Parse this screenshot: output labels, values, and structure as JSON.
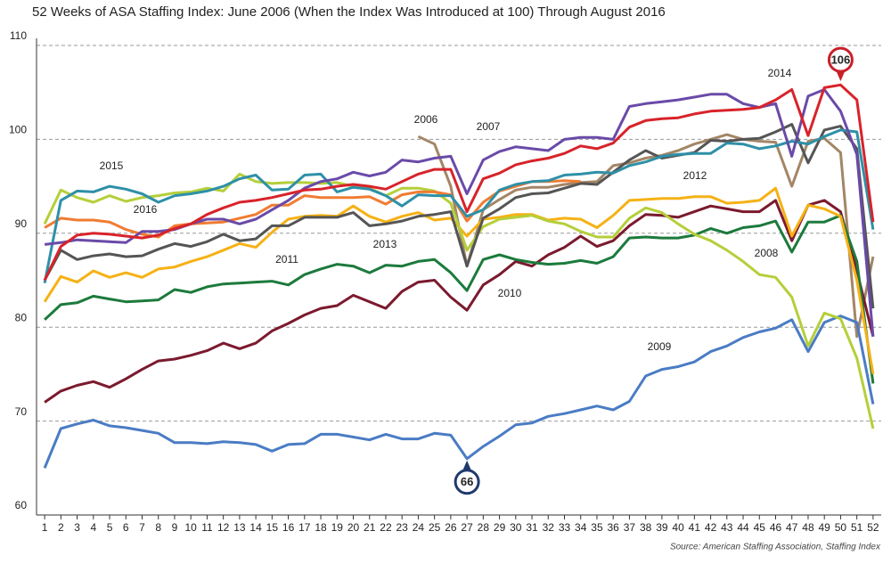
{
  "chart_data": {
    "type": "line",
    "title": "52 Weeks of ASA Staffing Index: June 2006 (When the Index Was Introduced at 100) Through August 2016",
    "source": "Source: American Staffing Association, Staffing Index",
    "x": [
      1,
      2,
      3,
      4,
      5,
      6,
      7,
      8,
      9,
      10,
      11,
      12,
      13,
      14,
      15,
      16,
      17,
      18,
      19,
      20,
      21,
      22,
      23,
      24,
      25,
      26,
      27,
      28,
      29,
      30,
      31,
      32,
      33,
      34,
      35,
      36,
      37,
      38,
      39,
      40,
      41,
      42,
      43,
      44,
      45,
      46,
      47,
      48,
      49,
      50,
      51,
      52
    ],
    "xlim": [
      0.5,
      52.5
    ],
    "ylim": [
      60,
      110
    ],
    "yticks": [
      60,
      70,
      80,
      90,
      100,
      110
    ],
    "grid": true,
    "series": [
      {
        "name": "2006",
        "color": "#a38666",
        "values": [
          null,
          null,
          null,
          null,
          null,
          null,
          null,
          null,
          null,
          null,
          null,
          null,
          null,
          null,
          null,
          null,
          null,
          null,
          null,
          null,
          null,
          null,
          null,
          100.3,
          99.5,
          95,
          86.5,
          92.5,
          93.6,
          94.6,
          94.9,
          94.9,
          95.2,
          95.4,
          95.5,
          97.2,
          97.5,
          98,
          98.3,
          98.8,
          99.5,
          100,
          100.5,
          100,
          99.8,
          99.7,
          95,
          99.8,
          100.1,
          98.6,
          79,
          87.5
        ]
      },
      {
        "name": "2009",
        "color": "#4a7cc4",
        "values": [
          65,
          69.2,
          69.7,
          70.1,
          69.5,
          69.3,
          69,
          68.7,
          67.7,
          67.7,
          67.6,
          67.8,
          67.7,
          67.5,
          66.8,
          67.5,
          67.6,
          68.6,
          68.6,
          68.3,
          68,
          68.6,
          68.1,
          68.1,
          68.7,
          68.5,
          66,
          67.3,
          68.4,
          69.6,
          69.8,
          70.5,
          70.8,
          71.2,
          71.6,
          71.2,
          72.1,
          74.8,
          75.5,
          75.8,
          76.3,
          77.4,
          78,
          78.9,
          79.5,
          79.9,
          80.8,
          77.4,
          80.5,
          81.2,
          80.5,
          71.8
        ]
      },
      {
        "name": "2010",
        "color": "#7b1a2e",
        "values": [
          72,
          73.2,
          73.8,
          74.2,
          73.6,
          74.5,
          75.5,
          76.4,
          76.6,
          77,
          77.5,
          78.3,
          77.7,
          78.3,
          79.6,
          80.4,
          81.3,
          82,
          82.3,
          83.4,
          82.7,
          82,
          83.8,
          84.8,
          85,
          83.2,
          81.8,
          84.5,
          85.6,
          87,
          86.5,
          87.7,
          88.5,
          89.7,
          88.6,
          89.2,
          90.8,
          92,
          91.9,
          91.7,
          92.3,
          92.9,
          92.6,
          92.3,
          92.3,
          93.5,
          89.2,
          93,
          93.5,
          92.3,
          86,
          79
        ]
      },
      {
        "name": "2011",
        "color": "#1c7a3c",
        "values": [
          80.8,
          82.4,
          82.6,
          83.3,
          83,
          82.7,
          82.8,
          82.9,
          84,
          83.7,
          84.3,
          84.6,
          84.7,
          84.8,
          84.9,
          84.5,
          85.6,
          86.2,
          86.7,
          86.5,
          85.8,
          86.6,
          86.5,
          87,
          87.2,
          85.8,
          83.9,
          87.2,
          87.7,
          87.2,
          86.9,
          86.7,
          86.8,
          87.1,
          86.8,
          87.5,
          89.5,
          89.6,
          89.5,
          89.5,
          89.8,
          90.5,
          90,
          90.6,
          90.8,
          91.3,
          88,
          91.2,
          91.2,
          91.9,
          87,
          74
        ]
      },
      {
        "name": "2012",
        "color": "#f6b115",
        "values": [
          82.7,
          85.4,
          84.8,
          86,
          85.3,
          85.8,
          85.3,
          86.2,
          86.4,
          87,
          87.5,
          88.2,
          88.9,
          88.5,
          90.1,
          91.5,
          91.8,
          91.9,
          91.8,
          92.9,
          91.8,
          91.2,
          91.8,
          92.2,
          91.4,
          91.6,
          89.7,
          91.5,
          91.7,
          92,
          92,
          91.4,
          91.6,
          91.5,
          90.6,
          91.9,
          93.5,
          93.6,
          93.7,
          93.7,
          93.9,
          93.9,
          93.2,
          93.3,
          93.5,
          94.8,
          89.7,
          93,
          92.6,
          91.8,
          85,
          75
        ]
      },
      {
        "name": "2008",
        "color": "#b5cf3a",
        "values": [
          91,
          94.6,
          93.8,
          93.3,
          94,
          93.4,
          93.8,
          94,
          94.3,
          94.4,
          94.8,
          94.5,
          96.3,
          95.5,
          95.3,
          95.4,
          95.4,
          95.3,
          95.4,
          95,
          94.8,
          94,
          94.8,
          94.8,
          94.5,
          93.2,
          88.2,
          90.7,
          91.5,
          91.7,
          91.9,
          91.3,
          91,
          90.2,
          89.6,
          89.6,
          91.6,
          92.7,
          92.2,
          91,
          89.9,
          89.2,
          88.2,
          87,
          85.6,
          85.3,
          83.2,
          78,
          81.5,
          80.9,
          76.7,
          69.2
        ]
      },
      {
        "name": "2016",
        "color": "#f07c32",
        "values": [
          90.6,
          91.6,
          91.4,
          91.4,
          91.2,
          90.4,
          89.9,
          89.6,
          90.8,
          91,
          91.1,
          91.2,
          91.6,
          92,
          93,
          93,
          94,
          93.8,
          93.8,
          93.8,
          93.9,
          93.1,
          94.1,
          94.4,
          94.4,
          94.1,
          91.3,
          93.3,
          94.5,
          95,
          95.5,
          95.5,
          95.6,
          95.5,
          null,
          null,
          null,
          null,
          null,
          null,
          null,
          null,
          null,
          null,
          null,
          null,
          null,
          null,
          null,
          null,
          null,
          null
        ]
      },
      {
        "name": "2013",
        "color": "#555555",
        "values": [
          85,
          88.2,
          87.2,
          87.6,
          87.8,
          87.5,
          87.6,
          88.3,
          88.9,
          88.6,
          89.1,
          89.9,
          89.2,
          89.4,
          90.8,
          90.8,
          91.7,
          91.7,
          91.7,
          92.2,
          90.8,
          91,
          91.3,
          91.8,
          92,
          92.3,
          86.5,
          91.6,
          92.6,
          93.8,
          94.2,
          94.3,
          94.8,
          95.3,
          95.2,
          96.5,
          97.8,
          98.8,
          98,
          98.3,
          98.6,
          99.9,
          99.8,
          100,
          100.1,
          100.8,
          101.6,
          97.5,
          101,
          101.4,
          99,
          82
        ]
      },
      {
        "name": "2015",
        "color": "#2e90a8",
        "values": [
          84.7,
          93.5,
          94.5,
          94.4,
          95,
          94.7,
          94.2,
          93.3,
          94,
          94.2,
          94.5,
          95,
          95.8,
          96.2,
          94.6,
          94.7,
          96.2,
          96.3,
          94.4,
          94.9,
          94.7,
          94,
          92.9,
          94.1,
          94,
          94,
          91.8,
          92.5,
          94.6,
          95.2,
          95.5,
          95.6,
          96.2,
          96.3,
          96.5,
          96.4,
          97.2,
          97.6,
          98.2,
          98.4,
          98.5,
          98.5,
          99.6,
          99.5,
          99,
          99.3,
          99.8,
          99.5,
          100.3,
          101,
          100.8,
          90.4
        ]
      },
      {
        "name": "2007",
        "color": "#6a4aa8",
        "values": [
          88.8,
          89,
          89.3,
          89.2,
          89.1,
          89,
          90.2,
          90.2,
          90.4,
          91,
          91.5,
          91.5,
          91,
          91.5,
          92.5,
          93.5,
          94.8,
          95.5,
          95.8,
          96.5,
          96.1,
          96.5,
          97.8,
          97.6,
          98,
          98.2,
          94.2,
          97.8,
          98.7,
          99.2,
          99,
          98.8,
          100,
          100.2,
          100.2,
          100,
          103.5,
          103.8,
          104,
          104.2,
          104.5,
          104.8,
          104.8,
          103.8,
          103.4,
          103.8,
          98.2,
          104.6,
          105.3,
          103,
          98.4,
          79
        ]
      },
      {
        "name": "2014",
        "color": "#d8232a",
        "values": [
          85,
          88.6,
          89.8,
          90,
          89.9,
          89.7,
          89.5,
          89.8,
          90.5,
          91,
          92,
          92.7,
          93.3,
          93.5,
          93.8,
          94.2,
          94.6,
          94.7,
          95,
          95.2,
          95,
          94.7,
          95.5,
          96.3,
          96.8,
          96.8,
          92.3,
          95.8,
          96.4,
          97.3,
          97.7,
          98,
          98.5,
          99.3,
          99,
          99.6,
          101.3,
          102,
          102.2,
          102.3,
          102.7,
          103,
          103.1,
          103.2,
          103.4,
          104.2,
          105.3,
          100.4,
          105.5,
          105.8,
          104.2,
          91.2
        ]
      }
    ],
    "annotations": [
      {
        "x": 27,
        "value": 66,
        "color": "#1f3a6e"
      },
      {
        "x": 50,
        "value": 106,
        "color": "#c8202a"
      }
    ]
  }
}
